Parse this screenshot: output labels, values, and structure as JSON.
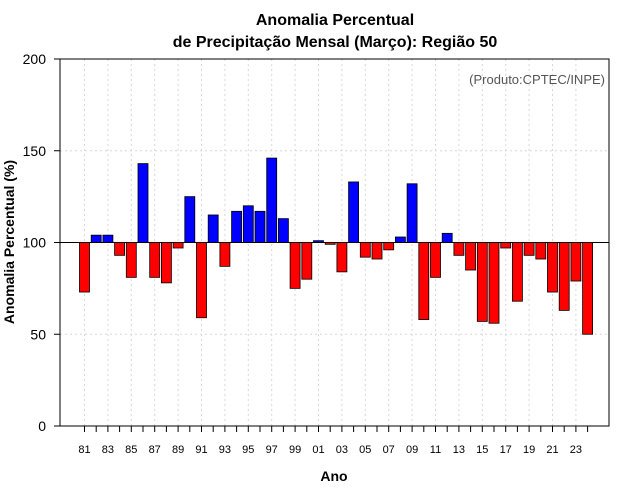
{
  "chart_data": {
    "type": "bar",
    "title_line1": "Anomalia Percentual",
    "title_line2": "de Precipitação Mensal (Março): Região 50",
    "xlabel": "Ano",
    "ylabel": "Anomalia Percentual (%)",
    "annotation": "(Produto:CPTEC/INPE)",
    "ylim": [
      0,
      200
    ],
    "yticks": [
      0,
      50,
      100,
      150,
      200
    ],
    "baseline": 100,
    "grid": true,
    "colors": {
      "above": "#0000ff",
      "below": "#ff0000",
      "edge": "#000000",
      "grid": "#d8d8d8",
      "baseline": "#000000"
    },
    "categories": [
      "81",
      "82",
      "83",
      "84",
      "85",
      "86",
      "87",
      "88",
      "89",
      "90",
      "91",
      "92",
      "93",
      "94",
      "95",
      "96",
      "97",
      "98",
      "99",
      "00",
      "01",
      "02",
      "03",
      "04",
      "05",
      "06",
      "07",
      "08",
      "09",
      "10",
      "11",
      "12",
      "13",
      "14",
      "15",
      "16",
      "17",
      "18",
      "19",
      "20",
      "21",
      "22",
      "23",
      "24"
    ],
    "xtick_labels": [
      "81",
      "83",
      "85",
      "87",
      "89",
      "91",
      "93",
      "95",
      "97",
      "99",
      "01",
      "03",
      "05",
      "07",
      "09",
      "11",
      "13",
      "15",
      "17",
      "19",
      "21",
      "23"
    ],
    "values": [
      73,
      104,
      104,
      93,
      81,
      143,
      81,
      78,
      97,
      125,
      59,
      115,
      87,
      117,
      120,
      117,
      146,
      113,
      75,
      80,
      101,
      99,
      84,
      133,
      92,
      91,
      96,
      103,
      132,
      58,
      81,
      105,
      93,
      85,
      57,
      56,
      97,
      68,
      93,
      91,
      73,
      63,
      79,
      50
    ]
  }
}
